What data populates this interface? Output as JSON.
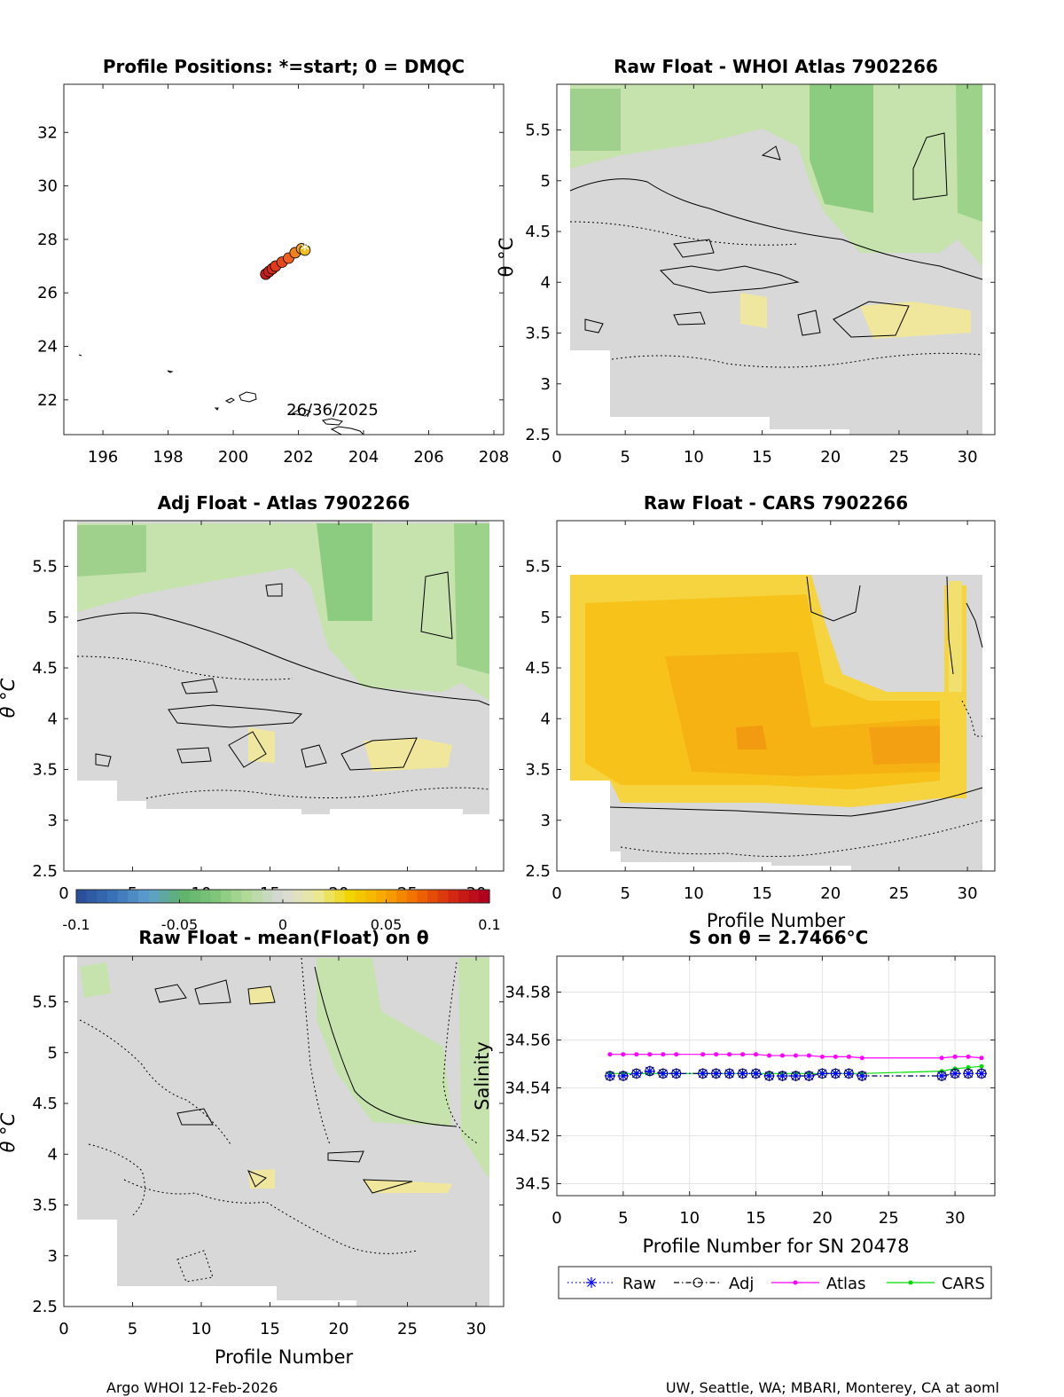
{
  "float_id": "7902266",
  "colorbar": {
    "min": -0.1,
    "max": 0.1,
    "tick_labels": [
      "-0.1",
      "-0.05",
      "0",
      "0.05",
      "0.1"
    ],
    "tick_values": [
      -0.1,
      -0.05,
      0,
      0.05,
      0.1
    ],
    "colors": [
      "#2b4f9a",
      "#3a74b8",
      "#5e9fd1",
      "#5fb36a",
      "#7fc67b",
      "#b5dc9c",
      "#d9d9d9",
      "#eaea9c",
      "#f2d400",
      "#f7a800",
      "#f06a00",
      "#d62a10",
      "#b0001e"
    ]
  },
  "panel_map": {
    "title": "Profile Positions: *=start; 0 = DMQC",
    "x_ticks": [
      "196",
      "198",
      "200",
      "202",
      "204",
      "206",
      "208"
    ],
    "x_tick_values": [
      196,
      198,
      200,
      202,
      204,
      206,
      208
    ],
    "y_ticks": [
      "22",
      "24",
      "26",
      "28",
      "30",
      "32"
    ],
    "y_tick_values": [
      22,
      24,
      26,
      28,
      30,
      32
    ],
    "xlim": [
      194.8,
      208.3
    ],
    "ylim": [
      20.7,
      33.8
    ],
    "date_label": "26/36/2025",
    "track_lon": [
      202.2,
      202.1,
      201.9,
      201.7,
      201.5,
      201.3,
      201.2,
      201.1,
      201.0
    ],
    "track_lat": [
      27.6,
      27.65,
      27.5,
      27.3,
      27.15,
      27.0,
      26.9,
      26.8,
      26.7
    ],
    "track_colors": [
      "#f0c020",
      "#f0a020",
      "#f08020",
      "#f06020",
      "#e84818",
      "#e03a18",
      "#d82c18",
      "#d02018",
      "#c81818"
    ],
    "start_marker": "*"
  },
  "panel_whoi": {
    "title": "Raw Float - WHOI Atlas  7902266",
    "x_ticks": [
      "0",
      "5",
      "10",
      "15",
      "20",
      "25",
      "30"
    ],
    "x_tick_values": [
      0,
      5,
      10,
      15,
      20,
      25,
      30
    ],
    "y_ticks": [
      "2.5",
      "3",
      "3.5",
      "4",
      "4.5",
      "5",
      "5.5"
    ],
    "y_tick_values": [
      2.5,
      3,
      3.5,
      4,
      4.5,
      5,
      5.5
    ],
    "ylabel": "θ °C"
  },
  "panel_adj": {
    "title": "Adj Float - Atlas  7902266",
    "x_ticks": [
      "0",
      "5",
      "10",
      "15",
      "20",
      "25",
      "30"
    ],
    "x_tick_values": [
      0,
      5,
      10,
      15,
      20,
      25,
      30
    ],
    "y_ticks": [
      "2.5",
      "3",
      "3.5",
      "4",
      "4.5",
      "5",
      "5.5"
    ],
    "y_tick_values": [
      2.5,
      3,
      3.5,
      4,
      4.5,
      5,
      5.5
    ],
    "ylabel": "θ °C"
  },
  "panel_cars": {
    "title": "Raw Float - CARS  7902266",
    "x_ticks": [
      "0",
      "5",
      "10",
      "15",
      "20",
      "25",
      "30"
    ],
    "x_tick_values": [
      0,
      5,
      10,
      15,
      20,
      25,
      30
    ],
    "y_ticks": [
      "2.5",
      "3",
      "3.5",
      "4",
      "4.5",
      "5",
      "5.5"
    ],
    "y_tick_values": [
      2.5,
      3,
      3.5,
      4,
      4.5,
      5,
      5.5
    ],
    "xlabel": "Profile Number",
    "ylabel": "θ °C"
  },
  "panel_mean": {
    "title": "Raw Float - mean(Float) on θ",
    "x_ticks": [
      "0",
      "5",
      "10",
      "15",
      "20",
      "25",
      "30"
    ],
    "x_tick_values": [
      0,
      5,
      10,
      15,
      20,
      25,
      30
    ],
    "y_ticks": [
      "2.5",
      "3",
      "3.5",
      "4",
      "4.5",
      "5",
      "5.5"
    ],
    "y_tick_values": [
      2.5,
      3,
      3.5,
      4,
      4.5,
      5,
      5.5
    ],
    "xlabel": "Profile Number",
    "ylabel": "θ °C"
  },
  "chart_data": {
    "type": "line",
    "title": "S on θ = 2.7466°C",
    "xlabel": "Profile Number for SN 20478",
    "ylabel": "Salinity",
    "xlim": [
      0,
      33
    ],
    "ylim": [
      34.495,
      34.595
    ],
    "x_ticks": [
      "0",
      "5",
      "10",
      "15",
      "20",
      "25",
      "30"
    ],
    "x_tick_values": [
      0,
      5,
      10,
      15,
      20,
      25,
      30
    ],
    "y_ticks": [
      "34.5",
      "34.52",
      "34.54",
      "34.56",
      "34.58"
    ],
    "y_tick_values": [
      34.5,
      34.52,
      34.54,
      34.56,
      34.58
    ],
    "grid": true,
    "legend_position": "bottom",
    "x": [
      4,
      5,
      6,
      7,
      8,
      9,
      11,
      12,
      13,
      14,
      15,
      16,
      17,
      18,
      19,
      20,
      21,
      22,
      23,
      29,
      30,
      31,
      32
    ],
    "series": [
      {
        "name": "Raw",
        "color": "#0000ff",
        "style": "dotted",
        "marker": "*",
        "values": [
          34.545,
          34.545,
          34.546,
          34.547,
          34.546,
          34.546,
          34.546,
          34.546,
          34.546,
          34.546,
          34.546,
          34.545,
          34.545,
          34.545,
          34.545,
          34.546,
          34.546,
          34.546,
          34.545,
          34.545,
          34.546,
          34.546,
          34.546
        ]
      },
      {
        "name": "Adj",
        "color": "#000000",
        "style": "dashdot",
        "marker": "o",
        "values": [
          34.545,
          34.545,
          34.546,
          34.547,
          34.546,
          34.546,
          34.546,
          34.546,
          34.546,
          34.546,
          34.546,
          34.545,
          34.545,
          34.545,
          34.545,
          34.546,
          34.546,
          34.546,
          34.545,
          34.545,
          34.546,
          34.546,
          34.546
        ]
      },
      {
        "name": "Atlas",
        "color": "#ff00ff",
        "style": "solid",
        "marker": ".",
        "values": [
          34.554,
          34.554,
          34.554,
          34.554,
          34.554,
          34.554,
          34.554,
          34.554,
          34.554,
          34.554,
          34.554,
          34.5535,
          34.5535,
          34.5535,
          34.5535,
          34.553,
          34.553,
          34.553,
          34.5525,
          34.5525,
          34.553,
          34.553,
          34.5525
        ]
      },
      {
        "name": "CARS",
        "color": "#00dd00",
        "style": "solid",
        "marker": ".",
        "values": [
          34.546,
          34.546,
          34.546,
          34.546,
          34.546,
          34.546,
          34.546,
          34.546,
          34.546,
          34.546,
          34.546,
          34.546,
          34.546,
          34.546,
          34.546,
          34.546,
          34.546,
          34.546,
          34.546,
          34.547,
          34.548,
          34.5485,
          34.549
        ]
      }
    ]
  },
  "footer": {
    "left": "Argo WHOI 12-Feb-2026",
    "right": "UW, Seattle, WA; MBARI, Monterey, CA at aoml"
  }
}
